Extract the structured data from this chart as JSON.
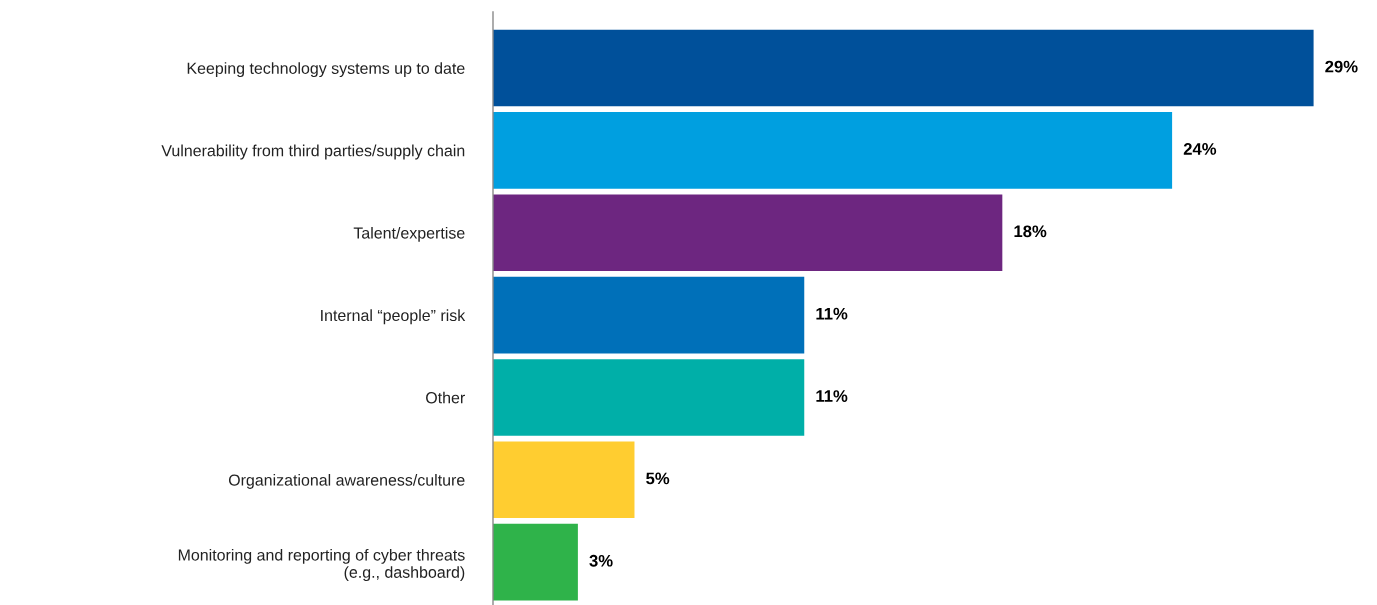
{
  "chart_data": {
    "type": "bar",
    "orientation": "horizontal",
    "categories": [
      "Keeping technology systems up to date",
      "Vulnerability from third parties/supply chain",
      "Talent/expertise",
      "Internal “people” risk",
      "Other",
      "Organizational awareness/culture",
      "Monitoring and reporting of cyber threats\n(e.g., dashboard)"
    ],
    "values": [
      29,
      24,
      18,
      11,
      11,
      5,
      3
    ],
    "colors": [
      "#00509a",
      "#009fe0",
      "#6d2680",
      "#0070b9",
      "#00afa8",
      "#ffcd30",
      "#2fb34a"
    ],
    "value_labels": [
      "29%",
      "24%",
      "18%",
      "11%",
      "11%",
      "5%",
      "3%"
    ],
    "grid": false,
    "legend": false
  }
}
